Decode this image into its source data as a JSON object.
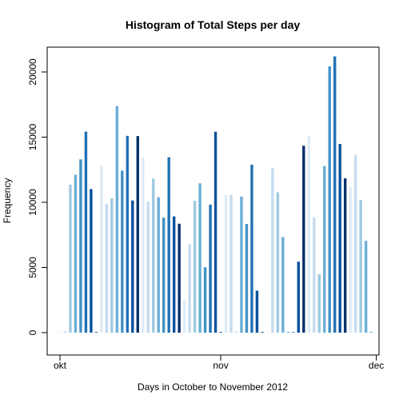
{
  "chart_data": {
    "type": "bar",
    "title": "Histogram of Total Steps per day",
    "xlabel": "Days in October to November 2012",
    "ylabel": "Frequency",
    "ylim": [
      0,
      21500
    ],
    "y_ticks": [
      0,
      5000,
      10000,
      15000,
      20000
    ],
    "x_ticks": [
      {
        "label": "okt",
        "date": "2012-10-01"
      },
      {
        "label": "nov",
        "date": "2012-11-01"
      },
      {
        "label": "dec",
        "date": "2012-12-01"
      }
    ],
    "grid": false,
    "legend": "none",
    "palette": [
      "#deebf7",
      "#c6dbef",
      "#9ecae1",
      "#6baed6",
      "#4292c6",
      "#2171b5",
      "#08519c",
      "#08306b"
    ],
    "x": [
      "2012-10-01",
      "2012-10-02",
      "2012-10-03",
      "2012-10-04",
      "2012-10-05",
      "2012-10-06",
      "2012-10-07",
      "2012-10-08",
      "2012-10-09",
      "2012-10-10",
      "2012-10-11",
      "2012-10-12",
      "2012-10-13",
      "2012-10-14",
      "2012-10-15",
      "2012-10-16",
      "2012-10-17",
      "2012-10-18",
      "2012-10-19",
      "2012-10-20",
      "2012-10-21",
      "2012-10-22",
      "2012-10-23",
      "2012-10-24",
      "2012-10-25",
      "2012-10-26",
      "2012-10-27",
      "2012-10-28",
      "2012-10-29",
      "2012-10-30",
      "2012-10-31",
      "2012-11-01",
      "2012-11-02",
      "2012-11-03",
      "2012-11-04",
      "2012-11-05",
      "2012-11-06",
      "2012-11-07",
      "2012-11-08",
      "2012-11-09",
      "2012-11-10",
      "2012-11-11",
      "2012-11-12",
      "2012-11-13",
      "2012-11-14",
      "2012-11-15",
      "2012-11-16",
      "2012-11-17",
      "2012-11-18",
      "2012-11-19",
      "2012-11-20",
      "2012-11-21",
      "2012-11-22",
      "2012-11-23",
      "2012-11-24",
      "2012-11-25",
      "2012-11-26",
      "2012-11-27",
      "2012-11-28",
      "2012-11-29",
      "2012-11-30"
    ],
    "values": [
      0,
      126,
      11352,
      12116,
      13294,
      15420,
      11015,
      0,
      12811,
      9900,
      10304,
      17382,
      12426,
      15098,
      10139,
      15084,
      13452,
      10056,
      11829,
      10395,
      8821,
      13460,
      8918,
      8355,
      2492,
      6778,
      10119,
      11458,
      5018,
      9819,
      15414,
      0,
      10600,
      10571,
      0,
      10439,
      8334,
      12883,
      3219,
      0,
      0,
      12608,
      10765,
      7336,
      41,
      0,
      5441,
      14339,
      15110,
      8841,
      4472,
      12787,
      20427,
      21194,
      14478,
      11834,
      11162,
      13646,
      10183,
      7047,
      0
    ]
  }
}
